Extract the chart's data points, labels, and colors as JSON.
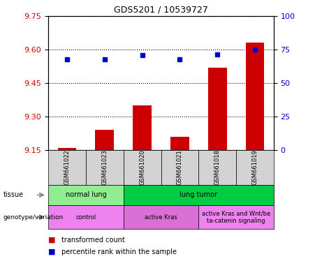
{
  "title": "GDS5201 / 10539727",
  "samples": [
    "GSM661022",
    "GSM661023",
    "GSM661020",
    "GSM661021",
    "GSM661018",
    "GSM661019"
  ],
  "bar_values": [
    9.16,
    9.24,
    9.35,
    9.21,
    9.52,
    9.63
  ],
  "bar_base": 9.15,
  "percentile_values": [
    9.555,
    9.555,
    9.575,
    9.555,
    9.578,
    9.6
  ],
  "ylim_left": [
    9.15,
    9.75
  ],
  "ylim_right": [
    0,
    100
  ],
  "yticks_left": [
    9.15,
    9.3,
    9.45,
    9.6,
    9.75
  ],
  "yticks_right": [
    0,
    25,
    50,
    75,
    100
  ],
  "bar_color": "#cc0000",
  "dot_color": "#0000cc",
  "tissue_groups": [
    {
      "label": "normal lung",
      "start": 0,
      "end": 2,
      "color": "#90ee90"
    },
    {
      "label": "lung tumor",
      "start": 2,
      "end": 6,
      "color": "#00cc44"
    }
  ],
  "genotype_groups": [
    {
      "label": "control",
      "start": 0,
      "end": 2,
      "color": "#ee82ee"
    },
    {
      "label": "active Kras",
      "start": 2,
      "end": 4,
      "color": "#da70d6"
    },
    {
      "label": "active Kras and Wnt/be\nta-catenin signaling",
      "start": 4,
      "end": 6,
      "color": "#ee82ee"
    }
  ],
  "legend_items": [
    {
      "label": "transformed count",
      "color": "#cc0000"
    },
    {
      "label": "percentile rank within the sample",
      "color": "#0000cc"
    }
  ],
  "background_color": "#ffffff"
}
